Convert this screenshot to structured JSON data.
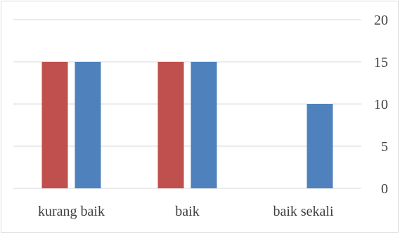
{
  "chart_data": {
    "type": "bar",
    "categories": [
      "kurang baik",
      "baik",
      "baik sekali"
    ],
    "series": [
      {
        "values": [
          15,
          15,
          0
        ],
        "color": "#c0504d"
      },
      {
        "values": [
          15,
          15,
          10
        ],
        "color": "#4f81bd"
      }
    ],
    "ylim": [
      0,
      20
    ],
    "yticks": [
      0,
      5,
      10,
      15,
      20
    ],
    "ytick_labels": [
      "0",
      "5",
      "10",
      "15",
      "20"
    ],
    "y_axis_position": "right",
    "grid": true,
    "legend": "none",
    "gridline_color": "#d9d9d9"
  }
}
